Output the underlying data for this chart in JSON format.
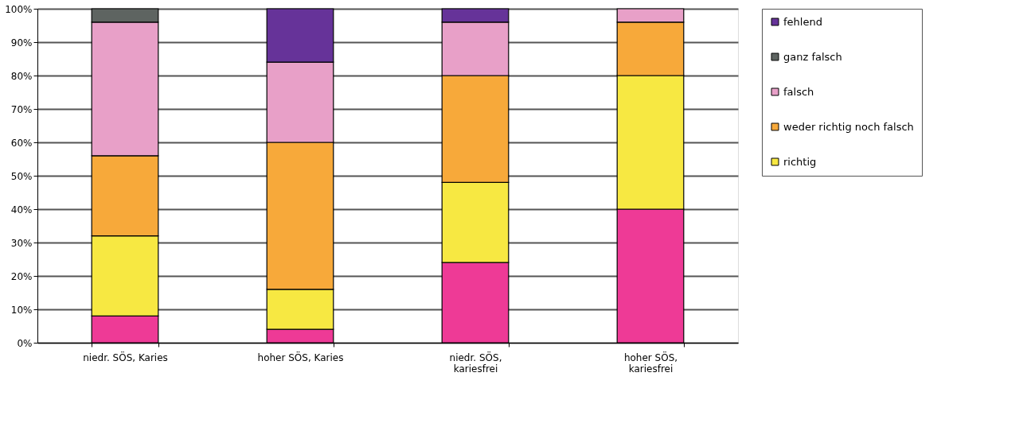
{
  "chart_data": {
    "type": "bar",
    "stacked": true,
    "categories": [
      "niedr. SÖS, Karies",
      "hoher SÖS, Karies",
      "niedr. SÖS, kariesfrei",
      "hoher SÖS, kariesfrei"
    ],
    "series": [
      {
        "color": "#ee3a96",
        "values": [
          8,
          4,
          24,
          40
        ]
      },
      {
        "name": "richtig",
        "color": "#f7e842",
        "values": [
          24,
          12,
          24,
          40
        ]
      },
      {
        "name": "weder richtig noch falsch",
        "color": "#f7a93a",
        "values": [
          24,
          44,
          32,
          16
        ]
      },
      {
        "name": "falsch",
        "color": "#e8a0c8",
        "values": [
          40,
          24,
          16,
          4
        ]
      },
      {
        "name": "ganz falsch",
        "color": "#5e6461",
        "values": [
          4,
          0,
          0,
          0
        ]
      },
      {
        "name": "fehlend",
        "color": "#663399",
        "values": [
          0,
          16,
          4,
          0
        ]
      }
    ],
    "ylim": [
      0,
      100
    ],
    "yticks": [
      {
        "value": 0,
        "label": "0%"
      },
      {
        "value": 10,
        "label": "10%"
      },
      {
        "value": 20,
        "label": "20%"
      },
      {
        "value": 30,
        "label": "30%"
      },
      {
        "value": 40,
        "label": "40%"
      },
      {
        "value": 50,
        "label": "50%"
      },
      {
        "value": 60,
        "label": "60%"
      },
      {
        "value": 70,
        "label": "70%"
      },
      {
        "value": 80,
        "label": "80%"
      },
      {
        "value": 90,
        "label": "90%"
      },
      {
        "value": 100,
        "label": "100%"
      }
    ],
    "grid": "y",
    "legend": "right"
  }
}
